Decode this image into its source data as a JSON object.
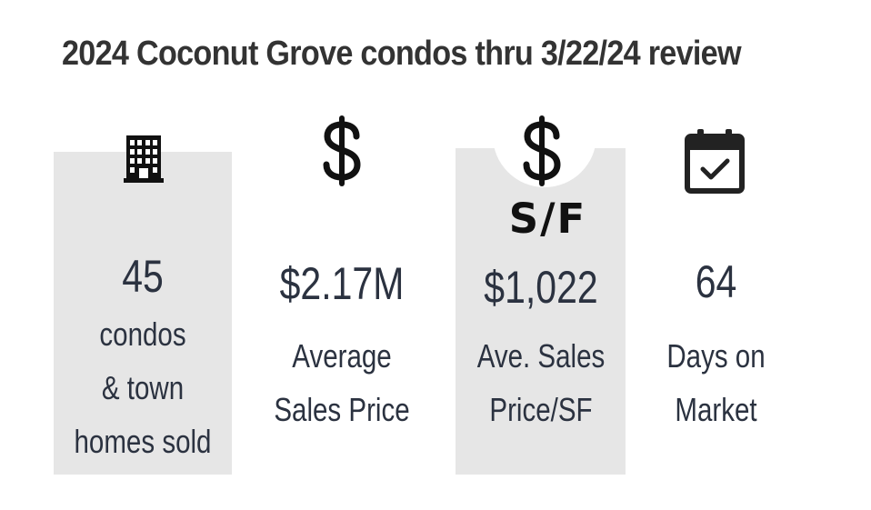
{
  "title": "2024 Coconut Grove condos thru 3/22/24 review",
  "stats": [
    {
      "icon": "building-icon",
      "value": "45",
      "description": "condos\n& town\nhomes sold"
    },
    {
      "icon": "dollar-icon",
      "value": "$2.17M",
      "description": "Average\nSales Price"
    },
    {
      "icon": "dollar-icon",
      "icon_label": "S/F",
      "value": "$1,022",
      "description": "Ave. Sales\nPrice/SF"
    },
    {
      "icon": "calendar-check-icon",
      "value": "64",
      "description": "Days  on\nMarket"
    }
  ],
  "colors": {
    "title": "#333333",
    "text": "#2b3240",
    "panel": "#e6e6e6",
    "icon": "#111111"
  }
}
